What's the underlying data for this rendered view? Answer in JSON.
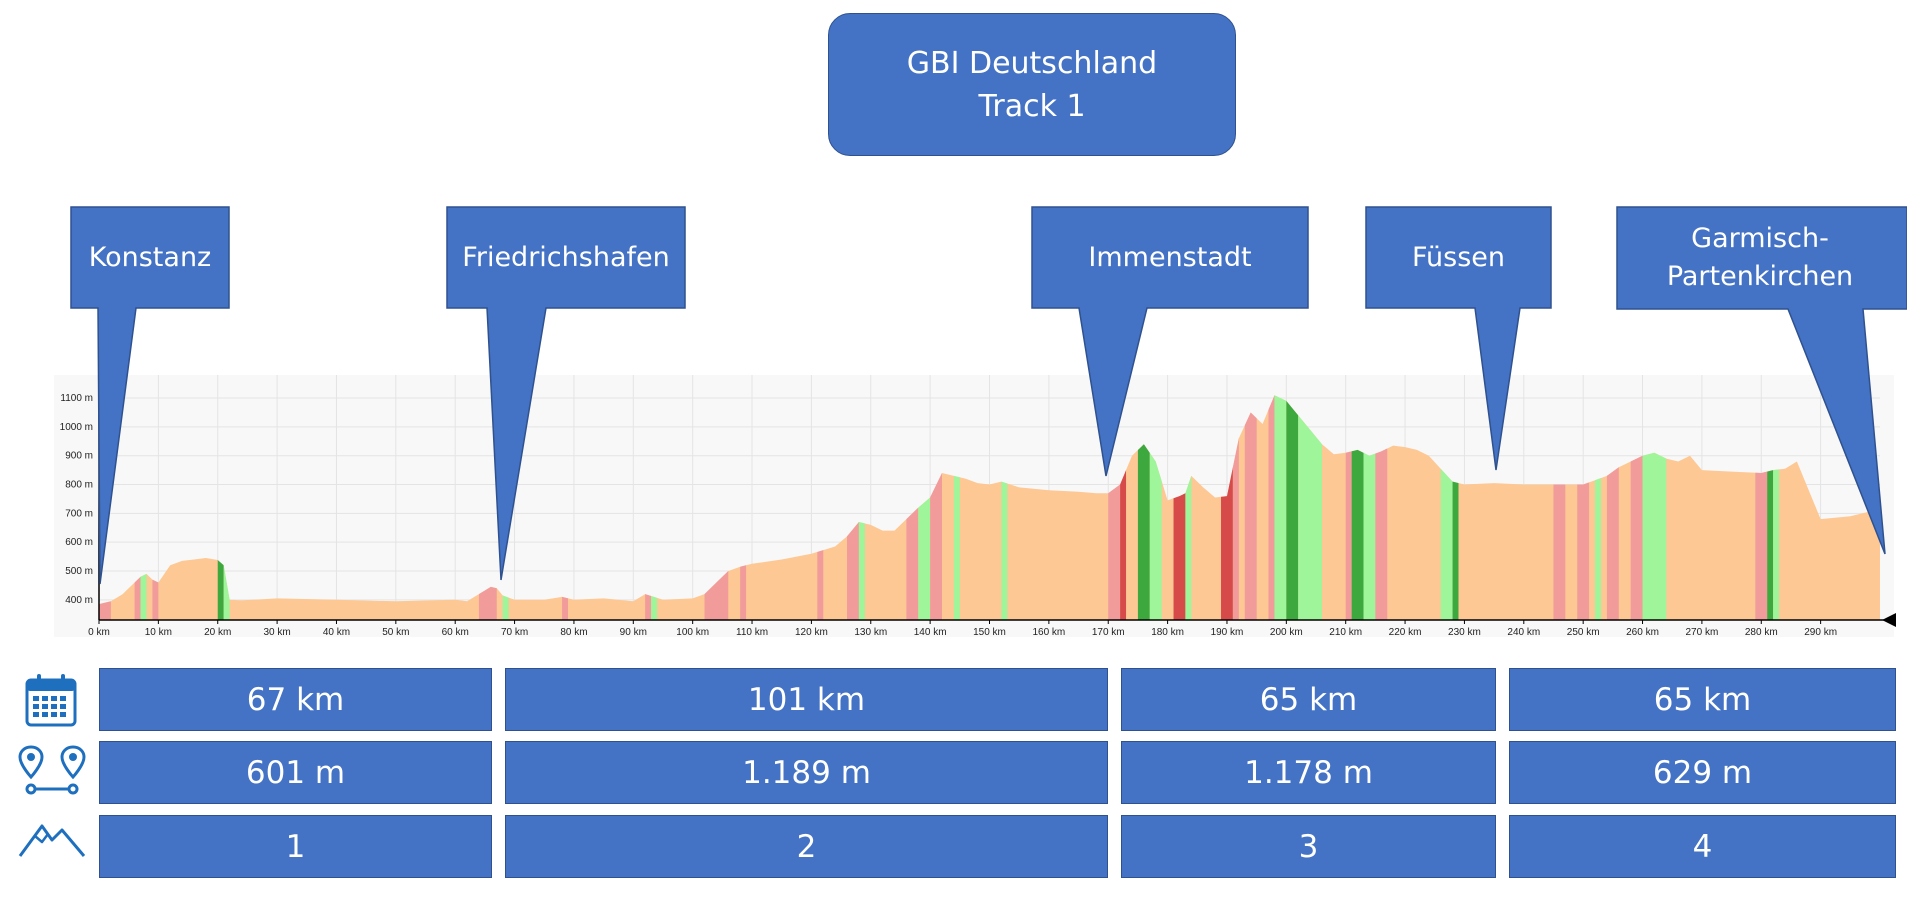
{
  "header": {
    "title_line1": "GBI Deutschland",
    "title_line2": "Track 1"
  },
  "places": [
    {
      "name": "Konstanz",
      "km": 0
    },
    {
      "name": "Friedrichshafen",
      "km": 67
    },
    {
      "name": "Immenstadt",
      "km": 168
    },
    {
      "name": "Füssen",
      "km": 233
    },
    {
      "name": "Garmisch-Partenkirchen",
      "km": 298
    }
  ],
  "chart_data": {
    "type": "area",
    "title": "",
    "xlabel": "",
    "ylabel": "",
    "xlim": [
      0,
      300
    ],
    "ylim": [
      330,
      1180
    ],
    "grid": true,
    "x_ticks": [
      "0 km",
      "10 km",
      "20 km",
      "30 km",
      "40 km",
      "50 km",
      "60 km",
      "70 km",
      "80 km",
      "90 km",
      "100 km",
      "110 km",
      "120 km",
      "130 km",
      "140 km",
      "150 km",
      "160 km",
      "170 km",
      "180 km",
      "190 km",
      "200 km",
      "210 km",
      "220 km",
      "230 km",
      "240 km",
      "250 km",
      "260 km",
      "270 km",
      "280 km",
      "290 km"
    ],
    "y_ticks": [
      "400 m",
      "500 m",
      "600 m",
      "700 m",
      "800 m",
      "900 m",
      "1000 m",
      "1100 m"
    ],
    "series": [
      {
        "x": [
          0,
          2,
          4,
          6,
          7,
          8,
          9,
          10,
          11,
          12,
          14,
          16,
          18,
          20,
          21,
          22,
          24,
          30,
          40,
          50,
          60,
          62,
          64,
          66,
          67,
          68,
          70,
          75,
          78,
          80,
          85,
          90,
          92,
          95,
          100,
          102,
          104,
          106,
          108,
          110,
          115,
          120,
          124,
          126,
          128,
          130,
          132,
          134,
          136,
          138,
          140,
          142,
          144,
          146,
          148,
          150,
          152,
          155,
          160,
          165,
          168,
          170,
          172,
          174,
          176,
          178,
          180,
          182,
          183,
          184,
          186,
          188,
          190,
          192,
          194,
          196,
          198,
          200,
          202,
          204,
          206,
          208,
          210,
          212,
          214,
          216,
          218,
          220,
          222,
          224,
          226,
          228,
          230,
          235,
          240,
          245,
          250,
          252,
          254,
          256,
          258,
          260,
          262,
          264,
          266,
          268,
          270,
          275,
          280,
          282,
          284,
          286,
          290,
          295,
          297,
          299,
          300
        ],
        "y": [
          385,
          395,
          420,
          460,
          480,
          490,
          470,
          460,
          490,
          520,
          535,
          540,
          545,
          538,
          520,
          400,
          398,
          405,
          400,
          395,
          400,
          395,
          420,
          445,
          440,
          415,
          400,
          400,
          410,
          400,
          405,
          395,
          420,
          400,
          405,
          420,
          460,
          500,
          515,
          525,
          540,
          560,
          585,
          620,
          670,
          660,
          640,
          640,
          680,
          720,
          755,
          840,
          830,
          820,
          805,
          800,
          810,
          790,
          780,
          775,
          770,
          770,
          800,
          900,
          940,
          880,
          745,
          760,
          770,
          830,
          790,
          755,
          760,
          960,
          1050,
          1010,
          1110,
          1090,
          1040,
          990,
          940,
          905,
          910,
          920,
          900,
          915,
          935,
          930,
          920,
          900,
          855,
          810,
          800,
          805,
          800,
          800,
          800,
          815,
          830,
          860,
          880,
          900,
          910,
          890,
          880,
          900,
          850,
          845,
          840,
          850,
          855,
          880,
          680,
          690,
          700,
          710,
          730
        ]
      }
    ],
    "grade_bands": [
      {
        "from": 0,
        "to": 2,
        "grade": "climb"
      },
      {
        "from": 6,
        "to": 7,
        "grade": "climb"
      },
      {
        "from": 7,
        "to": 8,
        "grade": "descent"
      },
      {
        "from": 9,
        "to": 10,
        "grade": "climb"
      },
      {
        "from": 20,
        "to": 21,
        "grade": "steep-descent"
      },
      {
        "from": 21,
        "to": 22,
        "grade": "descent"
      },
      {
        "from": 64,
        "to": 67,
        "grade": "climb"
      },
      {
        "from": 68,
        "to": 69,
        "grade": "descent"
      },
      {
        "from": 78,
        "to": 79,
        "grade": "climb"
      },
      {
        "from": 92,
        "to": 93,
        "grade": "climb"
      },
      {
        "from": 93,
        "to": 94,
        "grade": "descent"
      },
      {
        "from": 102,
        "to": 106,
        "grade": "climb"
      },
      {
        "from": 108,
        "to": 109,
        "grade": "climb"
      },
      {
        "from": 121,
        "to": 122,
        "grade": "climb"
      },
      {
        "from": 126,
        "to": 128,
        "grade": "climb"
      },
      {
        "from": 128,
        "to": 129,
        "grade": "descent"
      },
      {
        "from": 136,
        "to": 138,
        "grade": "climb"
      },
      {
        "from": 138,
        "to": 140,
        "grade": "descent"
      },
      {
        "from": 140,
        "to": 142,
        "grade": "climb"
      },
      {
        "from": 144,
        "to": 145,
        "grade": "descent"
      },
      {
        "from": 152,
        "to": 153,
        "grade": "descent"
      },
      {
        "from": 170,
        "to": 172,
        "grade": "climb"
      },
      {
        "from": 172,
        "to": 173,
        "grade": "steep-climb"
      },
      {
        "from": 175,
        "to": 177,
        "grade": "steep-descent"
      },
      {
        "from": 177,
        "to": 179,
        "grade": "descent"
      },
      {
        "from": 181,
        "to": 183,
        "grade": "steep-climb"
      },
      {
        "from": 183,
        "to": 184,
        "grade": "descent"
      },
      {
        "from": 189,
        "to": 191,
        "grade": "steep-climb"
      },
      {
        "from": 191,
        "to": 192,
        "grade": "climb"
      },
      {
        "from": 193,
        "to": 195,
        "grade": "climb"
      },
      {
        "from": 197,
        "to": 198,
        "grade": "climb"
      },
      {
        "from": 198,
        "to": 200,
        "grade": "descent"
      },
      {
        "from": 200,
        "to": 202,
        "grade": "steep-descent"
      },
      {
        "from": 202,
        "to": 206,
        "grade": "descent"
      },
      {
        "from": 210,
        "to": 211,
        "grade": "climb"
      },
      {
        "from": 211,
        "to": 213,
        "grade": "steep-descent"
      },
      {
        "from": 213,
        "to": 215,
        "grade": "descent"
      },
      {
        "from": 215,
        "to": 217,
        "grade": "climb"
      },
      {
        "from": 226,
        "to": 228,
        "grade": "descent"
      },
      {
        "from": 228,
        "to": 229,
        "grade": "steep-descent"
      },
      {
        "from": 245,
        "to": 247,
        "grade": "climb"
      },
      {
        "from": 249,
        "to": 251,
        "grade": "climb"
      },
      {
        "from": 252,
        "to": 253,
        "grade": "descent"
      },
      {
        "from": 254,
        "to": 256,
        "grade": "climb"
      },
      {
        "from": 258,
        "to": 260,
        "grade": "climb"
      },
      {
        "from": 260,
        "to": 262,
        "grade": "descent"
      },
      {
        "from": 262,
        "to": 264,
        "grade": "descent"
      },
      {
        "from": 279,
        "to": 281,
        "grade": "climb"
      },
      {
        "from": 281,
        "to": 282,
        "grade": "steep-descent"
      },
      {
        "from": 282,
        "to": 283,
        "grade": "descent"
      }
    ],
    "colors": {
      "base": "#fdc893",
      "climb": "#f19b9b",
      "steep-climb": "#d64a4a",
      "descent": "#9ef59a",
      "steep-descent": "#3da83d",
      "axis": "#000000",
      "grid": "#e4e4e4",
      "plot_bg": "#f8f8f8"
    }
  },
  "stats": {
    "rows": [
      {
        "icon": "calendar-icon",
        "values": [
          "67 km",
          "101 km",
          "65 km",
          "65 km"
        ]
      },
      {
        "icon": "route-pins-icon",
        "values": [
          "601 m",
          "1.189 m",
          "1.178 m",
          "629 m"
        ]
      },
      {
        "icon": "mountain-icon",
        "values": [
          "1",
          "2",
          "3",
          "4"
        ]
      }
    ]
  },
  "theme": {
    "box_fill": "#4472c4",
    "box_border": "#2f528f",
    "icon_color": "#1f6fbf"
  }
}
